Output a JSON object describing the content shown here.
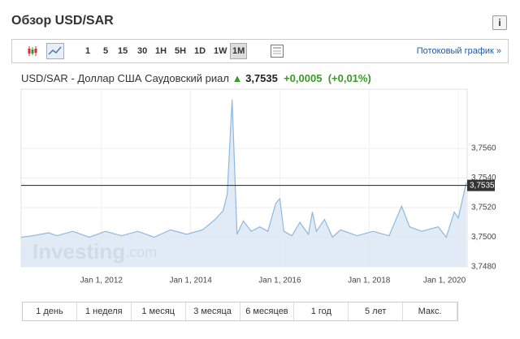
{
  "header": {
    "title": "Обзор USD/SAR",
    "info": "i"
  },
  "toolbar": {
    "periods": [
      "1",
      "5",
      "15",
      "30",
      "1H",
      "5H",
      "1D",
      "1W",
      "1M"
    ],
    "active": 8,
    "stream_link": "Потоковый график »"
  },
  "quote": {
    "name": "USD/SAR - Доллар США Саудовский риал",
    "price": "3,7535",
    "change": "+0,0005",
    "change_pct": "(+0,01%)"
  },
  "chart_data": {
    "type": "area",
    "color": "#8fb8de",
    "fill": "#dbe8f5",
    "grid": true,
    "watermark": [
      "Investing",
      ".com"
    ],
    "x": [
      2010.2,
      2010.45,
      2010.82,
      2011.0,
      2011.36,
      2011.73,
      2012.09,
      2012.45,
      2012.82,
      2013.18,
      2013.55,
      2013.91,
      2014.27,
      2014.55,
      2014.73,
      2014.82,
      2014.93,
      2015.04,
      2015.18,
      2015.36,
      2015.55,
      2015.73,
      2015.91,
      2016.0,
      2016.09,
      2016.27,
      2016.45,
      2016.64,
      2016.73,
      2016.82,
      2017.0,
      2017.18,
      2017.36,
      2017.73,
      2018.09,
      2018.45,
      2018.73,
      2018.91,
      2019.18,
      2019.55,
      2019.73,
      2019.91,
      2020.0,
      2020.18
    ],
    "values": [
      3.75,
      3.7501,
      3.7503,
      3.7501,
      3.7504,
      3.75,
      3.7504,
      3.7501,
      3.7504,
      3.75,
      3.7505,
      3.7502,
      3.7505,
      3.7512,
      3.7518,
      3.7529,
      3.7593,
      3.7502,
      3.7511,
      3.7504,
      3.7507,
      3.7504,
      3.7523,
      3.7526,
      3.7504,
      3.7501,
      3.751,
      3.7502,
      3.7517,
      3.7504,
      3.7512,
      3.75,
      3.7505,
      3.7501,
      3.7504,
      3.7501,
      3.7521,
      3.7507,
      3.7504,
      3.7507,
      3.75,
      3.7517,
      3.7513,
      3.7537
    ],
    "xlim": [
      2010.2,
      2020.2
    ],
    "ylim": [
      3.748,
      3.76
    ],
    "xticks": [
      {
        "value": 2012,
        "label": "Jan 1, 2012"
      },
      {
        "value": 2014,
        "label": "Jan 1, 2014"
      },
      {
        "value": 2016,
        "label": "Jan 1, 2016"
      },
      {
        "value": 2018,
        "label": "Jan 1, 2018"
      },
      {
        "value": 2020,
        "label": "Jan 1, 2020"
      }
    ],
    "yticks": [
      {
        "value": 3.748,
        "label": "3,7480"
      },
      {
        "value": 3.75,
        "label": "3,7500"
      },
      {
        "value": 3.752,
        "label": "3,7520"
      },
      {
        "value": 3.754,
        "label": "3,7540"
      },
      {
        "value": 3.756,
        "label": "3,7560"
      }
    ],
    "current_line": {
      "value": 3.7535,
      "label": "3,7535"
    }
  },
  "ranges": [
    "1 день",
    "1 неделя",
    "1 месяц",
    "3 месяца",
    "6 месяцев",
    "1 год",
    "5 лет",
    "Макс."
  ]
}
